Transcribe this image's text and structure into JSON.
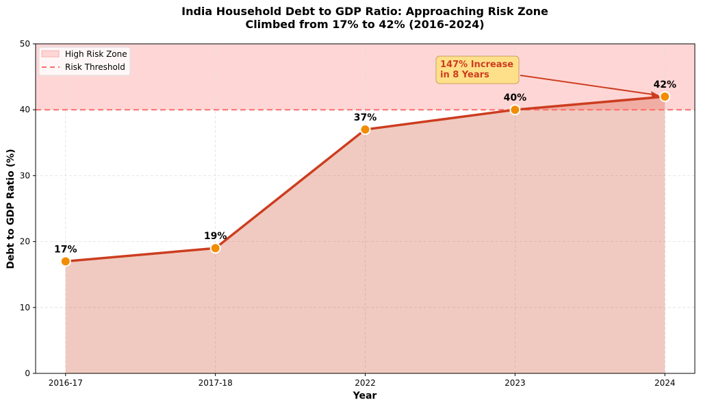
{
  "chart_data": {
    "type": "line",
    "title": "India Household Debt to GDP Ratio: Approaching Risk Zone",
    "subtitle": "Climbed from 17% to 42% (2016-2024)",
    "xlabel": "Year",
    "ylabel": "Debt to GDP Ratio (%)",
    "categories": [
      "2016-17",
      "2017-18",
      "2022",
      "2023",
      "2024"
    ],
    "values": [
      17,
      19,
      37,
      40,
      42
    ],
    "data_labels": [
      "17%",
      "19%",
      "37%",
      "40%",
      "42%"
    ],
    "ylim": [
      0,
      50
    ],
    "yticks": [
      0,
      10,
      20,
      30,
      40,
      50
    ],
    "grid": true,
    "fill_under_line": true,
    "risk_zone": {
      "from": 40,
      "to": 50,
      "label": "High Risk Zone",
      "color": "#ffd6d6"
    },
    "risk_threshold": {
      "value": 40,
      "label": "Risk Threshold",
      "color": "#ff6b6b",
      "style": "dashed"
    },
    "legend_placement": "top-left",
    "annotation": {
      "text_lines": [
        "147% Increase",
        "in 8 Years"
      ],
      "points_to": "2024",
      "box_color": "#ffe08a",
      "text_color": "#cc3d1f"
    },
    "colors": {
      "line": "#cc3d1f",
      "marker": "#f28c00",
      "fill": "#ecc3b8"
    }
  }
}
